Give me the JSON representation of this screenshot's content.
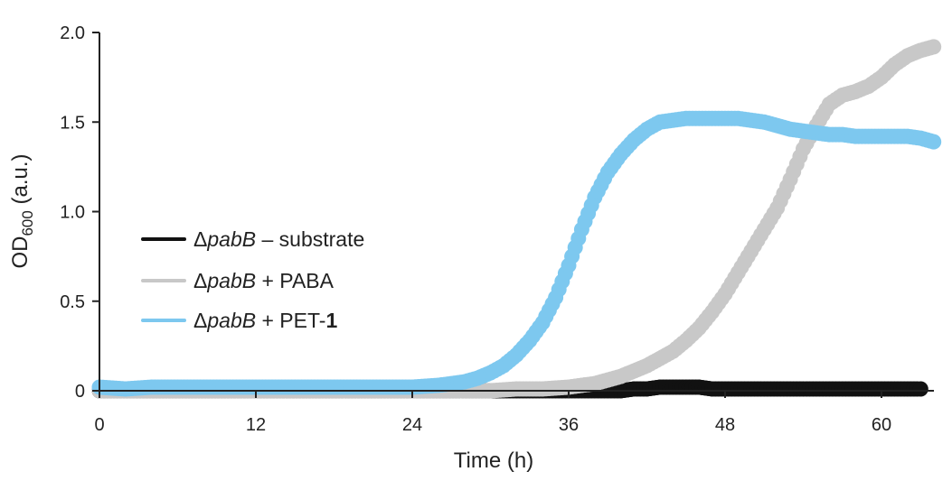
{
  "chart_data": {
    "type": "scatter",
    "xlabel": "Time (h)",
    "ylabel": {
      "main": "OD",
      "sub": "600",
      "unit": " (a.u.)"
    },
    "xlim": [
      0,
      64
    ],
    "ylim": [
      0,
      2.0
    ],
    "xticks": [
      "0",
      "12",
      "24",
      "36",
      "48",
      "60"
    ],
    "yticks": [
      "0",
      "0.5",
      "1.0",
      "1.5",
      "2.0"
    ],
    "grid": false,
    "legend_position": "center-left",
    "series": [
      {
        "name": {
          "prefix": "Δ",
          "gene": "pabB",
          "suffix": " – substrate",
          "bold": ""
        },
        "color": "#111111",
        "x": [
          0,
          2,
          4,
          6,
          8,
          10,
          12,
          14,
          16,
          18,
          20,
          22,
          24,
          26,
          28,
          30,
          32,
          34,
          36,
          38,
          40,
          41,
          42,
          43,
          44,
          45,
          46,
          47,
          48,
          49,
          50,
          51,
          52,
          53,
          54,
          55,
          56,
          57,
          58,
          59,
          60,
          61,
          62,
          63
        ],
        "y": [
          0.0,
          0.0,
          0.0,
          0.0,
          0.0,
          0.0,
          0.0,
          0.0,
          0.0,
          0.0,
          0.0,
          0.0,
          0.0,
          0.0,
          0.0,
          0.0,
          0.0,
          0.0,
          0.0,
          0.0,
          0.0,
          0.01,
          0.01,
          0.02,
          0.02,
          0.02,
          0.02,
          0.01,
          0.01,
          0.01,
          0.01,
          0.01,
          0.01,
          0.01,
          0.01,
          0.01,
          0.01,
          0.01,
          0.01,
          0.01,
          0.01,
          0.01,
          0.01,
          0.01
        ]
      },
      {
        "name": {
          "prefix": "Δ",
          "gene": "pabB",
          "suffix": " + PABA",
          "bold": ""
        },
        "color": "#c8c8c8",
        "x": [
          0,
          4,
          8,
          12,
          16,
          20,
          24,
          28,
          30,
          32,
          34,
          36,
          37,
          38,
          39,
          40,
          41,
          42,
          43,
          44,
          45,
          46,
          47,
          48,
          49,
          50,
          51,
          52,
          53,
          54,
          55,
          56,
          57,
          58,
          59,
          60,
          61,
          62,
          63,
          64
        ],
        "y": [
          0.0,
          0.0,
          0.0,
          0.0,
          0.0,
          0.0,
          0.0,
          0.0,
          0.0,
          0.01,
          0.01,
          0.02,
          0.03,
          0.04,
          0.06,
          0.08,
          0.11,
          0.14,
          0.18,
          0.22,
          0.28,
          0.35,
          0.44,
          0.54,
          0.66,
          0.78,
          0.9,
          1.02,
          1.18,
          1.35,
          1.48,
          1.6,
          1.65,
          1.67,
          1.7,
          1.75,
          1.82,
          1.87,
          1.9,
          1.92
        ]
      },
      {
        "name": {
          "prefix": "Δ",
          "gene": "pabB",
          "suffix": " + PET-",
          "bold": "1"
        },
        "color": "#7dc8ef",
        "x": [
          0,
          2,
          4,
          6,
          8,
          10,
          12,
          14,
          16,
          18,
          20,
          22,
          24,
          26,
          28,
          29,
          30,
          31,
          32,
          33,
          34,
          35,
          36,
          37,
          38,
          39,
          40,
          41,
          42,
          43,
          44,
          45,
          46,
          47,
          48,
          49,
          50,
          51,
          52,
          53,
          54,
          55,
          56,
          57,
          58,
          59,
          60,
          61,
          62,
          63,
          64
        ],
        "y": [
          0.02,
          0.01,
          0.02,
          0.02,
          0.02,
          0.02,
          0.02,
          0.02,
          0.02,
          0.02,
          0.02,
          0.02,
          0.02,
          0.03,
          0.05,
          0.07,
          0.1,
          0.14,
          0.2,
          0.28,
          0.38,
          0.52,
          0.7,
          0.9,
          1.08,
          1.22,
          1.32,
          1.4,
          1.46,
          1.5,
          1.51,
          1.52,
          1.52,
          1.52,
          1.52,
          1.52,
          1.51,
          1.5,
          1.48,
          1.46,
          1.45,
          1.44,
          1.43,
          1.43,
          1.42,
          1.42,
          1.42,
          1.42,
          1.42,
          1.41,
          1.39
        ]
      }
    ]
  }
}
